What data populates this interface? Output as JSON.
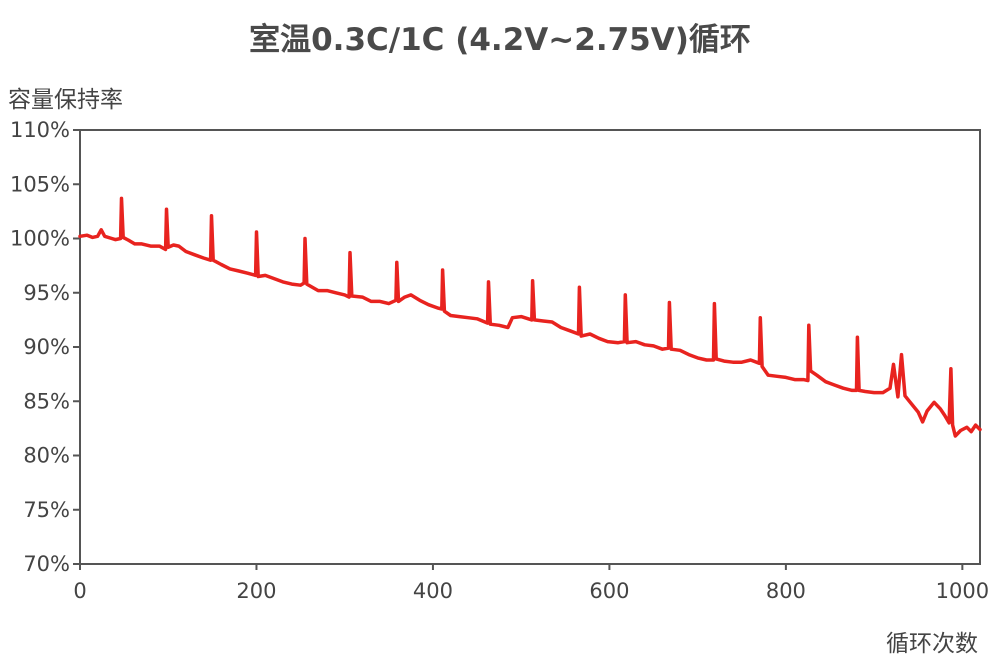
{
  "chart_data": {
    "type": "line",
    "title": "室温0.3C/1C (4.2V~2.75V)循环",
    "xlabel": "循环次数",
    "ylabel": "容量保持率",
    "xlim": [
      0,
      1020
    ],
    "ylim": [
      70,
      110
    ],
    "xticks": [
      0,
      200,
      400,
      600,
      800,
      1000
    ],
    "xtick_labels": [
      "0",
      "200",
      "400",
      "600",
      "800",
      "1000"
    ],
    "yticks": [
      70,
      75,
      80,
      85,
      90,
      95,
      100,
      105,
      110
    ],
    "ytick_labels": [
      "70%",
      "75%",
      "80%",
      "85%",
      "90%",
      "95%",
      "100%",
      "105%",
      "110%"
    ],
    "grid": false,
    "legend": "none",
    "series": [
      {
        "color": "#e8231f",
        "points": [
          [
            0,
            100.2
          ],
          [
            8,
            100.3
          ],
          [
            14,
            100.1
          ],
          [
            20,
            100.2
          ],
          [
            24,
            100.8
          ],
          [
            28,
            100.2
          ],
          [
            36,
            100.0
          ],
          [
            40,
            99.9
          ],
          [
            46,
            100.0
          ],
          [
            47,
            103.7
          ],
          [
            49,
            100.1
          ],
          [
            56,
            99.8
          ],
          [
            62,
            99.5
          ],
          [
            70,
            99.5
          ],
          [
            80,
            99.3
          ],
          [
            90,
            99.3
          ],
          [
            97,
            99.0
          ],
          [
            98,
            102.7
          ],
          [
            100,
            99.2
          ],
          [
            106,
            99.4
          ],
          [
            112,
            99.3
          ],
          [
            120,
            98.8
          ],
          [
            130,
            98.5
          ],
          [
            140,
            98.2
          ],
          [
            148,
            98.0
          ],
          [
            149,
            102.1
          ],
          [
            151,
            98.0
          ],
          [
            160,
            97.6
          ],
          [
            170,
            97.2
          ],
          [
            180,
            97.0
          ],
          [
            190,
            96.8
          ],
          [
            199,
            96.6
          ],
          [
            200,
            100.6
          ],
          [
            202,
            96.5
          ],
          [
            210,
            96.6
          ],
          [
            220,
            96.3
          ],
          [
            230,
            96.0
          ],
          [
            240,
            95.8
          ],
          [
            250,
            95.7
          ],
          [
            254,
            95.9
          ],
          [
            255,
            100.0
          ],
          [
            257,
            95.8
          ],
          [
            270,
            95.2
          ],
          [
            280,
            95.2
          ],
          [
            290,
            95.0
          ],
          [
            300,
            94.8
          ],
          [
            305,
            94.6
          ],
          [
            306,
            98.7
          ],
          [
            308,
            94.7
          ],
          [
            320,
            94.6
          ],
          [
            330,
            94.2
          ],
          [
            340,
            94.2
          ],
          [
            350,
            94.0
          ],
          [
            358,
            94.3
          ],
          [
            359,
            97.8
          ],
          [
            361,
            94.2
          ],
          [
            368,
            94.6
          ],
          [
            375,
            94.8
          ],
          [
            385,
            94.3
          ],
          [
            395,
            93.9
          ],
          [
            405,
            93.6
          ],
          [
            410,
            93.5
          ],
          [
            411,
            97.1
          ],
          [
            413,
            93.3
          ],
          [
            420,
            92.9
          ],
          [
            430,
            92.8
          ],
          [
            440,
            92.7
          ],
          [
            450,
            92.6
          ],
          [
            462,
            92.2
          ],
          [
            463,
            96.0
          ],
          [
            465,
            92.1
          ],
          [
            475,
            92.0
          ],
          [
            485,
            91.8
          ],
          [
            490,
            92.7
          ],
          [
            500,
            92.8
          ],
          [
            512,
            92.5
          ],
          [
            513,
            96.1
          ],
          [
            515,
            92.5
          ],
          [
            525,
            92.4
          ],
          [
            535,
            92.3
          ],
          [
            545,
            91.8
          ],
          [
            555,
            91.5
          ],
          [
            565,
            91.2
          ],
          [
            566,
            95.5
          ],
          [
            568,
            91.0
          ],
          [
            578,
            91.2
          ],
          [
            588,
            90.8
          ],
          [
            598,
            90.5
          ],
          [
            610,
            90.4
          ],
          [
            617,
            90.5
          ],
          [
            618,
            94.8
          ],
          [
            620,
            90.4
          ],
          [
            630,
            90.5
          ],
          [
            640,
            90.2
          ],
          [
            650,
            90.1
          ],
          [
            660,
            89.8
          ],
          [
            667,
            89.9
          ],
          [
            668,
            94.1
          ],
          [
            670,
            89.8
          ],
          [
            680,
            89.7
          ],
          [
            690,
            89.3
          ],
          [
            700,
            89.0
          ],
          [
            710,
            88.8
          ],
          [
            718,
            88.8
          ],
          [
            719,
            94.0
          ],
          [
            721,
            88.9
          ],
          [
            730,
            88.7
          ],
          [
            740,
            88.6
          ],
          [
            750,
            88.6
          ],
          [
            760,
            88.8
          ],
          [
            770,
            88.5
          ],
          [
            771,
            92.7
          ],
          [
            773,
            88.2
          ],
          [
            780,
            87.4
          ],
          [
            790,
            87.3
          ],
          [
            800,
            87.2
          ],
          [
            810,
            87.0
          ],
          [
            820,
            87.0
          ],
          [
            825,
            86.9
          ],
          [
            826,
            92.0
          ],
          [
            828,
            87.8
          ],
          [
            835,
            87.4
          ],
          [
            845,
            86.8
          ],
          [
            855,
            86.5
          ],
          [
            865,
            86.2
          ],
          [
            875,
            86.0
          ],
          [
            880,
            86.0
          ],
          [
            881,
            90.9
          ],
          [
            883,
            86.0
          ],
          [
            890,
            85.9
          ],
          [
            900,
            85.8
          ],
          [
            910,
            85.8
          ],
          [
            918,
            86.2
          ],
          [
            922,
            88.4
          ],
          [
            927,
            85.4
          ],
          [
            931,
            89.3
          ],
          [
            935,
            85.5
          ],
          [
            940,
            85.0
          ],
          [
            950,
            84.0
          ],
          [
            955,
            83.1
          ],
          [
            960,
            84.1
          ],
          [
            968,
            84.9
          ],
          [
            975,
            84.3
          ],
          [
            980,
            83.7
          ],
          [
            985,
            83.0
          ],
          [
            987,
            88.0
          ],
          [
            989,
            82.8
          ],
          [
            992,
            81.8
          ],
          [
            998,
            82.3
          ],
          [
            1005,
            82.6
          ],
          [
            1010,
            82.2
          ],
          [
            1015,
            82.8
          ],
          [
            1020,
            82.4
          ]
        ]
      }
    ]
  }
}
